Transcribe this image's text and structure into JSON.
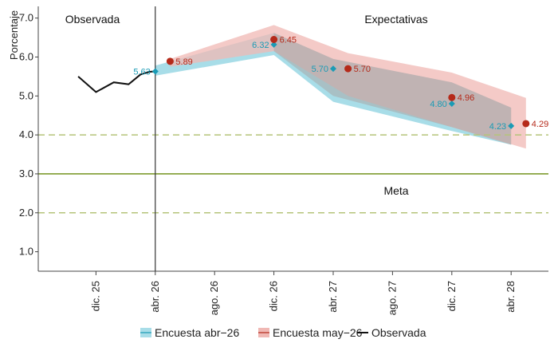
{
  "chart_data": {
    "type": "line",
    "ylabel": "Porcentaje",
    "ylim": [
      0.5,
      7.3
    ],
    "y_ticks": [
      "1.0",
      "2.0",
      "3.0",
      "4.0",
      "5.0",
      "6.0",
      "7.0"
    ],
    "x_ticks": [
      "dic. 25",
      "abr. 26",
      "ago. 26",
      "dic. 26",
      "abr. 27",
      "ago. 27",
      "dic. 27",
      "abr. 28"
    ],
    "region_labels": {
      "observed": "Observada",
      "forecast": "Expectativas",
      "target": "Meta"
    },
    "target": 3.0,
    "tolerance_band": [
      2.0,
      4.0
    ],
    "observed": {
      "name": "Observada",
      "points": [
        {
          "t": 0.7,
          "y": 5.5
        },
        {
          "t": 1.0,
          "y": 5.1
        },
        {
          "t": 1.3,
          "y": 5.35
        },
        {
          "t": 1.55,
          "y": 5.3
        },
        {
          "t": 1.75,
          "y": 5.55
        },
        {
          "t": 1.9,
          "y": 5.62
        },
        {
          "t": 2.0,
          "y": 5.63
        }
      ]
    },
    "series": [
      {
        "name": "Encuesta abr−26",
        "color": "#1a9bb5",
        "band_color": "#a8dde8",
        "band": [
          {
            "t": 2.0,
            "lo": 5.52,
            "hi": 5.78
          },
          {
            "t": 4.0,
            "lo": 6.05,
            "hi": 6.62
          },
          {
            "t": 5.0,
            "lo": 4.85,
            "hi": 5.95
          },
          {
            "t": 7.0,
            "lo": 4.1,
            "hi": 5.35
          },
          {
            "t": 8.0,
            "lo": 3.75,
            "hi": 4.7
          }
        ],
        "points": [
          {
            "t": 2.0,
            "y": 5.63,
            "label": "5.63"
          },
          {
            "t": 4.0,
            "y": 6.32,
            "label": "6.32"
          },
          {
            "t": 5.0,
            "y": 5.7,
            "label": "5.70"
          },
          {
            "t": 7.0,
            "y": 4.8,
            "label": "4.80"
          },
          {
            "t": 8.0,
            "y": 4.23,
            "label": "4.23"
          }
        ]
      },
      {
        "name": "Encuesta may−26",
        "color": "#b52a1a",
        "band_color": "#f0b8b4",
        "band": [
          {
            "t": 2.25,
            "lo": 5.75,
            "hi": 5.95
          },
          {
            "t": 4.0,
            "lo": 6.15,
            "hi": 6.82
          },
          {
            "t": 5.25,
            "lo": 5.0,
            "hi": 6.1
          },
          {
            "t": 7.0,
            "lo": 4.2,
            "hi": 5.6
          },
          {
            "t": 8.25,
            "lo": 3.65,
            "hi": 4.95
          }
        ],
        "points": [
          {
            "t": 2.25,
            "y": 5.89,
            "label": "5.89"
          },
          {
            "t": 4.0,
            "y": 6.45,
            "label": "6.45"
          },
          {
            "t": 5.25,
            "y": 5.7,
            "label": "5.70"
          },
          {
            "t": 7.0,
            "y": 4.96,
            "label": "4.96"
          },
          {
            "t": 8.25,
            "y": 4.29,
            "label": "4.29"
          }
        ]
      }
    ],
    "legend": {
      "placement": "bottom",
      "entries": [
        {
          "name": "Encuesta abr−26",
          "color": "#a8dde8",
          "line": "#1a9bb5"
        },
        {
          "name": "Encuesta may−26",
          "color": "#f0b8b4",
          "line": "#b52a1a"
        },
        {
          "name": "Observada",
          "color": "#111111",
          "line": "#111111"
        }
      ]
    },
    "colors": {
      "target_line": "#8fa84a",
      "tolerance_line": "#b5c47a",
      "observed_line": "#111111"
    }
  }
}
